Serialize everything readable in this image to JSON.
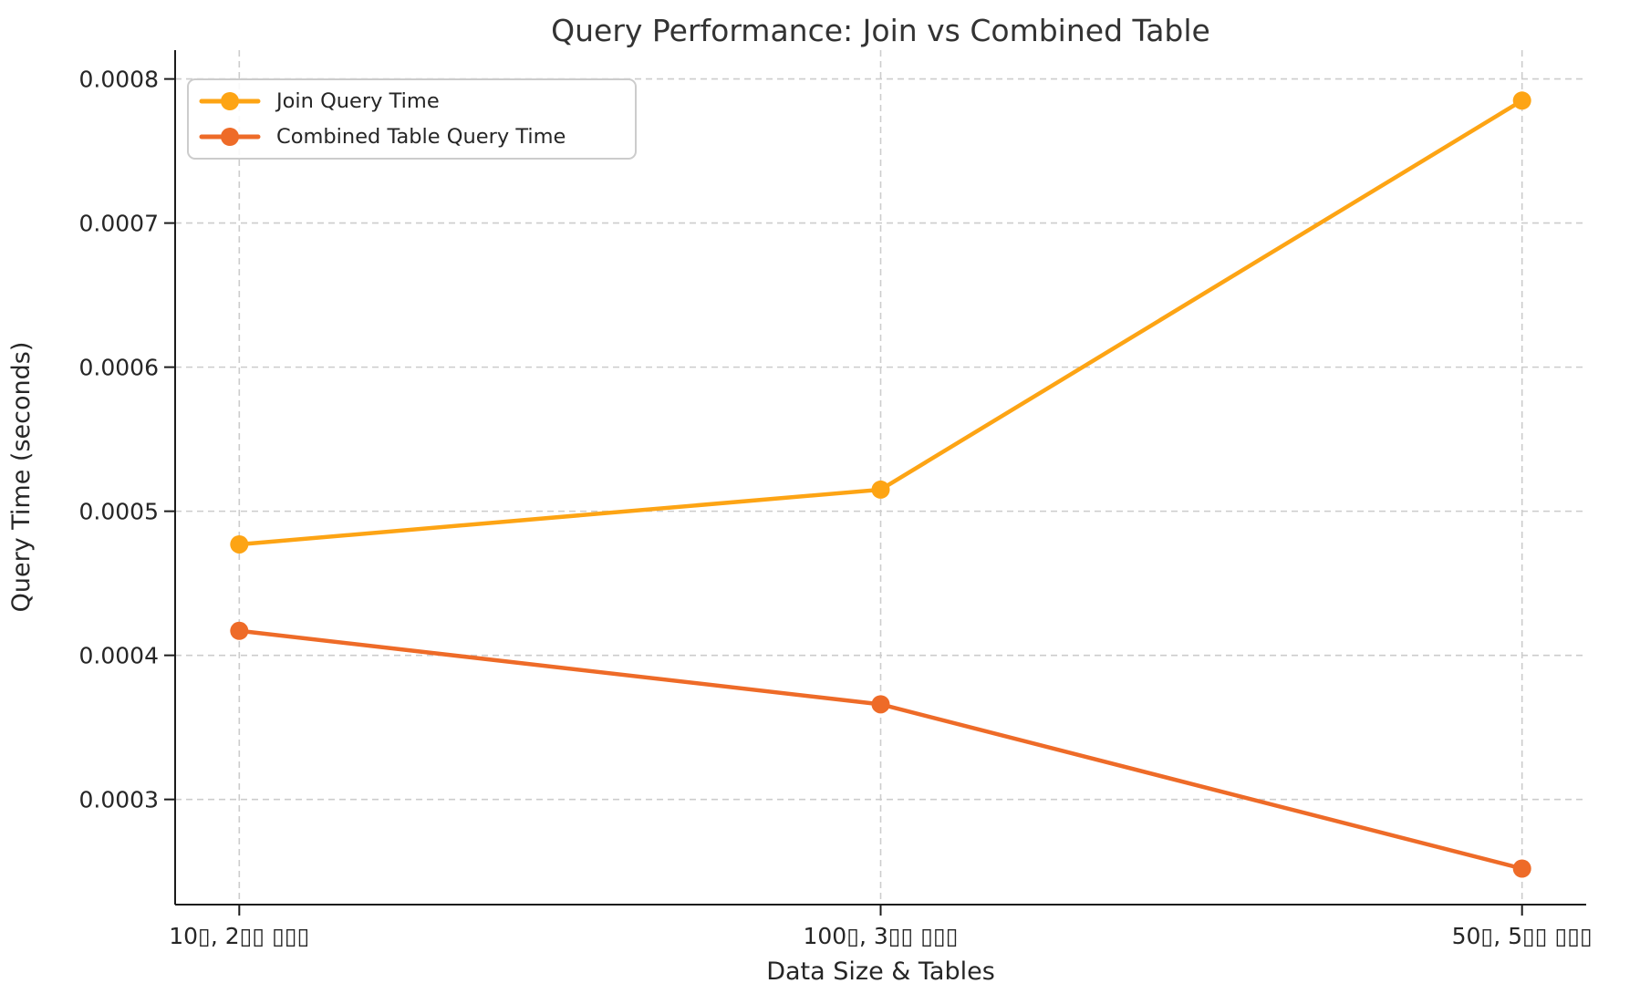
{
  "chart_data": {
    "type": "line",
    "title": "Query Performance: Join vs Combined Table",
    "xlabel": "Data Size & Tables",
    "ylabel": "Query Time (seconds)",
    "categories": [
      "10▯, 2▯▯ ▯▯▯",
      "100▯, 3▯▯ ▯▯▯",
      "50▯, 5▯▯ ▯▯▯"
    ],
    "series": [
      {
        "name": "Join Query Time",
        "color": "#FDA414",
        "values": [
          0.000477,
          0.000515,
          0.000785
        ]
      },
      {
        "name": "Combined Table Query Time",
        "color": "#EE6B28",
        "values": [
          0.000417,
          0.000366,
          0.000252
        ]
      }
    ],
    "yticks": {
      "values": [
        0.0003,
        0.0004,
        0.0005,
        0.0006,
        0.0007,
        0.0008
      ],
      "labels": [
        "0.0003",
        "0.0004",
        "0.0005",
        "0.0006",
        "0.0007",
        "0.0008"
      ]
    },
    "ylim": [
      0.000227,
      0.00082
    ],
    "grid": "dashed-both-axes",
    "grid_color": "#cccccc",
    "spine_color": "#1c1c1c",
    "tick_label_color": "#262626",
    "legend_position": "upper-left",
    "marker": "circle",
    "line_width": 4.5,
    "marker_radius": 10
  }
}
